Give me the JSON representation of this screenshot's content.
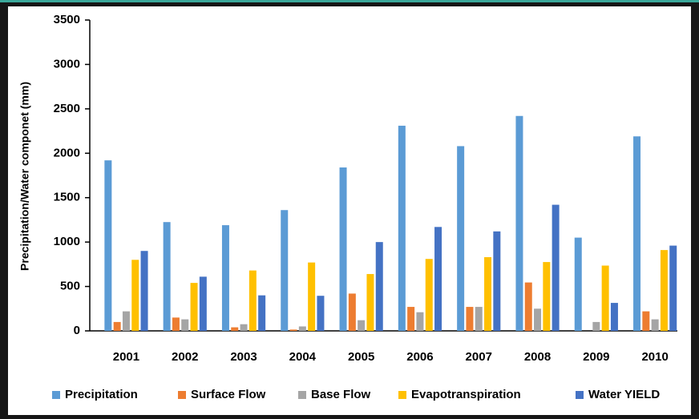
{
  "chart_data": {
    "type": "bar",
    "y_label": "Precipitation/Water componet (mm)",
    "categories": [
      "2001",
      "2002",
      "2003",
      "2004",
      "2005",
      "2006",
      "2007",
      "2008",
      "2009",
      "2010"
    ],
    "series": [
      {
        "name": "Precipitation",
        "color": "#5b9bd5",
        "values": [
          1920,
          1225,
          1190,
          1360,
          1840,
          2310,
          2080,
          2420,
          1050,
          2190
        ]
      },
      {
        "name": "Surface Flow",
        "color": "#ed7d31",
        "values": [
          100,
          150,
          40,
          15,
          420,
          270,
          270,
          545,
          0,
          220
        ]
      },
      {
        "name": "Base Flow",
        "color": "#a5a5a5",
        "values": [
          220,
          130,
          75,
          50,
          120,
          210,
          270,
          250,
          100,
          130
        ]
      },
      {
        "name": "Evapotranspiration",
        "color": "#ffc000",
        "values": [
          800,
          540,
          680,
          770,
          640,
          810,
          830,
          775,
          735,
          910
        ]
      },
      {
        "name": "Water YIELD",
        "color": "#4472c4",
        "values": [
          900,
          610,
          400,
          395,
          1000,
          1170,
          1120,
          1420,
          315,
          960
        ]
      }
    ],
    "ylim": [
      0,
      3500
    ],
    "yticks": [
      0,
      500,
      1000,
      1500,
      2000,
      2500,
      3000,
      3500
    ],
    "grid": false,
    "legend": "bottom"
  }
}
